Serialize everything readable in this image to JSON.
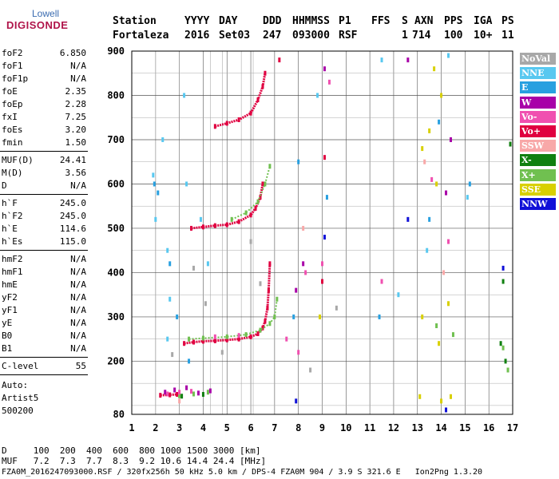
{
  "logo": {
    "top": "Lowell",
    "main": "DIGISONDE"
  },
  "header": {
    "labels": [
      "Station",
      "YYYY",
      "DAY",
      "DDD",
      "HHMMSS",
      "P1",
      "FFS",
      "S",
      "AXN",
      "PPS",
      "IGA",
      "PS"
    ],
    "values": [
      "Fortaleza",
      "2016",
      "Set03",
      "247",
      "093000",
      "RSF",
      "",
      "1",
      "714",
      "100",
      "10+",
      "11"
    ]
  },
  "params": {
    "group1": [
      {
        "name": "foF2",
        "value": "6.850"
      },
      {
        "name": "foF1",
        "value": "N/A"
      },
      {
        "name": "foF1p",
        "value": "N/A"
      },
      {
        "name": "foE",
        "value": "2.35"
      },
      {
        "name": "foEp",
        "value": "2.28"
      },
      {
        "name": "fxI",
        "value": "7.25"
      },
      {
        "name": "foEs",
        "value": "3.20"
      },
      {
        "name": "fmin",
        "value": "1.50"
      }
    ],
    "group2": [
      {
        "name": "MUF(D)",
        "value": "24.41"
      },
      {
        "name": "M(D)",
        "value": "3.56"
      },
      {
        "name": "D",
        "value": "N/A"
      }
    ],
    "group3": [
      {
        "name": "h`F",
        "value": "245.0"
      },
      {
        "name": "h`F2",
        "value": "245.0"
      },
      {
        "name": "h`E",
        "value": "114.6"
      },
      {
        "name": "h`Es",
        "value": "115.0"
      }
    ],
    "group4": [
      {
        "name": "hmF2",
        "value": "N/A"
      },
      {
        "name": "hmF1",
        "value": "N/A"
      },
      {
        "name": "hmE",
        "value": "N/A"
      },
      {
        "name": "yF2",
        "value": "N/A"
      },
      {
        "name": "yF1",
        "value": "N/A"
      },
      {
        "name": "yE",
        "value": "N/A"
      },
      {
        "name": "B0",
        "value": "N/A"
      },
      {
        "name": "B1",
        "value": "N/A"
      }
    ],
    "clevel": {
      "name": "C-level",
      "value": "55"
    },
    "auto": [
      "Auto:",
      "Artist5",
      "500200"
    ]
  },
  "footer": {
    "line1": "D     100  200  400  600  800 1000 1500 3000 [km]",
    "line2": "MUF   7.2  7.3  7.7  8.3  9.2 10.6 14.4 24.4 [MHz]",
    "line3": "FZA0M_2016247093000.RSF / 320fx256h 50 kHz 5.0 km / DPS-4 FZA0M 904 / 3.9 S 321.6 E   Ion2Png 1.3.20"
  },
  "legend": [
    {
      "label": "NoVal",
      "color": "#a8a8a8"
    },
    {
      "label": "NNE",
      "color": "#58c8f0"
    },
    {
      "label": "E",
      "color": "#28a0e0"
    },
    {
      "label": "W",
      "color": "#a800a8"
    },
    {
      "label": "Vo-",
      "color": "#f050b0"
    },
    {
      "label": "Vo+",
      "color": "#e00040"
    },
    {
      "label": "SSW",
      "color": "#f8a8a8"
    },
    {
      "label": "X-",
      "color": "#108010"
    },
    {
      "label": "X+",
      "color": "#70c050"
    },
    {
      "label": "SSE",
      "color": "#d8d000"
    },
    {
      "label": "NNW",
      "color": "#1010d8"
    }
  ],
  "chart_data": {
    "type": "scatter",
    "title": "",
    "xlabel": "",
    "ylabel": "",
    "xlim": [
      1,
      17
    ],
    "ylim": [
      80,
      900
    ],
    "x_ticks": [
      1,
      2,
      3,
      4,
      5,
      6,
      7,
      8,
      9,
      10,
      11,
      12,
      13,
      14,
      15,
      16,
      17
    ],
    "y_ticks": [
      80,
      200,
      300,
      400,
      500,
      600,
      700,
      800,
      900
    ],
    "grid": true,
    "legend_position": "right",
    "series": [
      {
        "name": "Vo+",
        "color": "#e00040",
        "points": [
          [
            2.2,
            123
          ],
          [
            2.6,
            124
          ],
          [
            2.9,
            125
          ],
          [
            3.2,
            240
          ],
          [
            3.6,
            243
          ],
          [
            4.0,
            245
          ],
          [
            4.5,
            246
          ],
          [
            5.0,
            248
          ],
          [
            5.5,
            250
          ],
          [
            6.0,
            255
          ],
          [
            6.3,
            262
          ],
          [
            6.5,
            275
          ],
          [
            6.6,
            290
          ],
          [
            6.7,
            320
          ],
          [
            6.75,
            360
          ],
          [
            6.8,
            420
          ],
          [
            3.5,
            500
          ],
          [
            4.0,
            503
          ],
          [
            4.5,
            506
          ],
          [
            5.0,
            508
          ],
          [
            5.5,
            515
          ],
          [
            6.0,
            530
          ],
          [
            6.2,
            545
          ],
          [
            6.4,
            570
          ],
          [
            6.5,
            600
          ],
          [
            4.5,
            730
          ],
          [
            5.0,
            737
          ],
          [
            5.5,
            745
          ],
          [
            6.0,
            760
          ],
          [
            6.3,
            790
          ],
          [
            6.5,
            820
          ],
          [
            6.6,
            850
          ],
          [
            7.2,
            880
          ],
          [
            9.1,
            660
          ],
          [
            9.0,
            380
          ]
        ]
      },
      {
        "name": "X+",
        "color": "#70c050",
        "points": [
          [
            3.4,
            250
          ],
          [
            4.0,
            252
          ],
          [
            5.0,
            255
          ],
          [
            5.8,
            260
          ],
          [
            6.4,
            270
          ],
          [
            6.8,
            285
          ],
          [
            7.0,
            300
          ],
          [
            7.1,
            340
          ],
          [
            5.2,
            520
          ],
          [
            5.8,
            535
          ],
          [
            6.3,
            560
          ],
          [
            6.6,
            600
          ],
          [
            6.8,
            640
          ],
          [
            3.0,
            122
          ],
          [
            3.6,
            126
          ],
          [
            4.2,
            130
          ],
          [
            13.8,
            280
          ],
          [
            14.5,
            260
          ],
          [
            16.6,
            230
          ],
          [
            16.8,
            180
          ]
        ]
      },
      {
        "name": "X-",
        "color": "#108010",
        "points": [
          [
            3.1,
            121
          ],
          [
            4.0,
            125
          ],
          [
            16.5,
            240
          ],
          [
            16.7,
            200
          ],
          [
            16.9,
            690
          ],
          [
            16.6,
            380
          ]
        ]
      },
      {
        "name": "W",
        "color": "#a800a8",
        "points": [
          [
            2.4,
            130
          ],
          [
            2.8,
            135
          ],
          [
            3.3,
            140
          ],
          [
            3.8,
            128
          ],
          [
            4.3,
            133
          ],
          [
            7.9,
            360
          ],
          [
            8.2,
            420
          ],
          [
            9.1,
            860
          ],
          [
            14.4,
            700
          ],
          [
            14.2,
            580
          ],
          [
            12.6,
            880
          ]
        ]
      },
      {
        "name": "Vo-",
        "color": "#f050b0",
        "points": [
          [
            2.5,
            126
          ],
          [
            3.0,
            130
          ],
          [
            3.5,
            132
          ],
          [
            4.5,
            255
          ],
          [
            5.5,
            258
          ],
          [
            7.5,
            250
          ],
          [
            8.0,
            220
          ],
          [
            8.3,
            400
          ],
          [
            9.0,
            420
          ],
          [
            9.3,
            830
          ],
          [
            13.6,
            610
          ],
          [
            14.3,
            470
          ],
          [
            11.5,
            380
          ]
        ]
      },
      {
        "name": "NNE",
        "color": "#58c8f0",
        "points": [
          [
            1.9,
            620
          ],
          [
            2.0,
            520
          ],
          [
            2.3,
            700
          ],
          [
            2.5,
            450
          ],
          [
            2.6,
            340
          ],
          [
            2.5,
            250
          ],
          [
            3.3,
            600
          ],
          [
            3.2,
            800
          ],
          [
            3.9,
            520
          ],
          [
            4.2,
            420
          ],
          [
            8.8,
            800
          ],
          [
            11.5,
            880
          ],
          [
            14.3,
            890
          ],
          [
            13.4,
            450
          ],
          [
            12.2,
            350
          ],
          [
            15.1,
            570
          ]
        ]
      },
      {
        "name": "E",
        "color": "#28a0e0",
        "points": [
          [
            1.95,
            600
          ],
          [
            2.1,
            580
          ],
          [
            2.6,
            420
          ],
          [
            2.9,
            300
          ],
          [
            3.4,
            200
          ],
          [
            7.8,
            300
          ],
          [
            8.0,
            650
          ],
          [
            9.2,
            570
          ],
          [
            13.5,
            520
          ],
          [
            13.9,
            740
          ],
          [
            15.2,
            600
          ],
          [
            11.4,
            300
          ]
        ]
      },
      {
        "name": "SSE",
        "color": "#d8d000",
        "points": [
          [
            13.2,
            680
          ],
          [
            13.5,
            720
          ],
          [
            13.8,
            600
          ],
          [
            14.0,
            800
          ],
          [
            13.2,
            300
          ],
          [
            14.3,
            330
          ],
          [
            13.9,
            240
          ],
          [
            13.1,
            120
          ],
          [
            14.0,
            110
          ],
          [
            8.9,
            300
          ],
          [
            13.7,
            860
          ],
          [
            14.4,
            120
          ]
        ]
      },
      {
        "name": "NNW",
        "color": "#1010d8",
        "points": [
          [
            9.1,
            480
          ],
          [
            12.6,
            520
          ],
          [
            16.6,
            410
          ],
          [
            14.2,
            90
          ],
          [
            7.9,
            110
          ]
        ]
      },
      {
        "name": "SSW",
        "color": "#f8a8a8",
        "points": [
          [
            8.2,
            500
          ],
          [
            13.3,
            650
          ],
          [
            14.1,
            400
          ],
          [
            3.0,
            110
          ]
        ]
      },
      {
        "name": "NoVal",
        "color": "#a8a8a8",
        "points": [
          [
            2.7,
            215
          ],
          [
            3.6,
            410
          ],
          [
            4.1,
            330
          ],
          [
            4.8,
            220
          ],
          [
            6.0,
            470
          ],
          [
            6.4,
            375
          ],
          [
            8.5,
            180
          ],
          [
            9.6,
            320
          ]
        ]
      }
    ]
  }
}
